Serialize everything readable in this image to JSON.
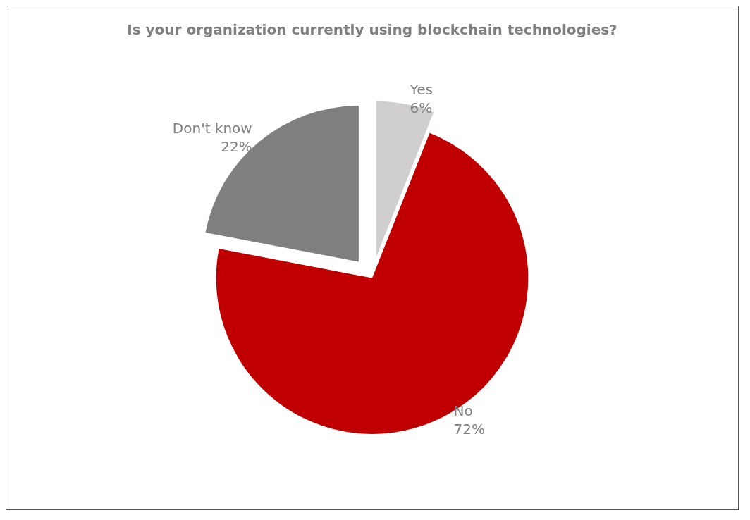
{
  "chart_data": {
    "type": "pie",
    "title": "Is your organization currently using blockchain technologies?",
    "categories": [
      "Yes",
      "No",
      "Don't know"
    ],
    "values": [
      6,
      72,
      22
    ],
    "value_labels": [
      "6%",
      "72%",
      "22%"
    ],
    "colors": [
      "#d0cece",
      "#c00000",
      "#7f7f7f"
    ],
    "legend": false
  }
}
